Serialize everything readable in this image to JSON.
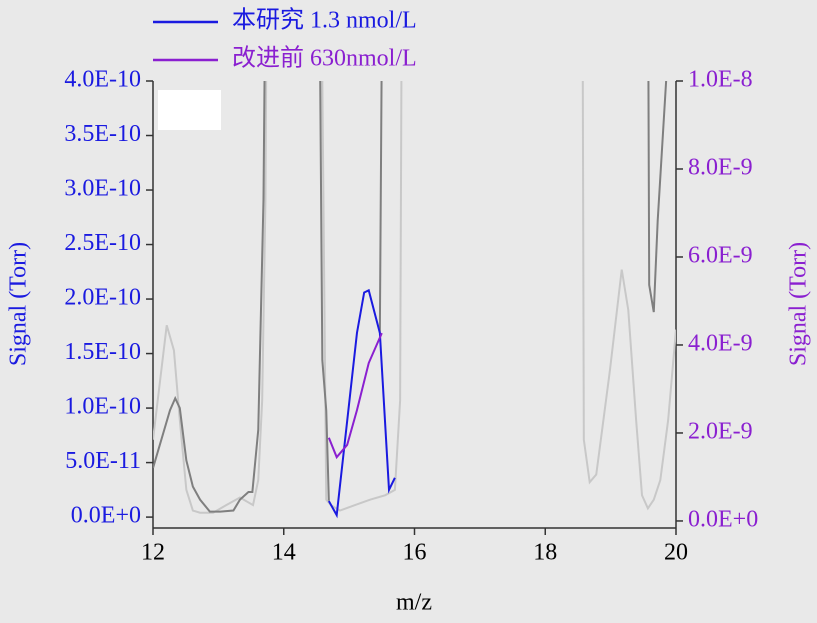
{
  "chart_data": {
    "type": "line",
    "xlabel": "m/z",
    "ylabel": "Signal (Torr)",
    "y2label": "Signal (Torr)",
    "xlim": [
      12,
      20
    ],
    "xticks": [
      12,
      14,
      16,
      18,
      20
    ],
    "ylim": [
      -1e-11,
      4e-10
    ],
    "yticks": [
      {
        "value": 0,
        "label": "0.0E+0"
      },
      {
        "value": 5e-11,
        "label": "5.0E-11"
      },
      {
        "value": 1e-10,
        "label": "1.0E-10"
      },
      {
        "value": 1.5e-10,
        "label": "1.5E-10"
      },
      {
        "value": 2e-10,
        "label": "2.0E-10"
      },
      {
        "value": 2.5e-10,
        "label": "2.5E-10"
      },
      {
        "value": 3e-10,
        "label": "3.0E-10"
      },
      {
        "value": 3.5e-10,
        "label": "3.5E-10"
      },
      {
        "value": 4e-10,
        "label": "4.0E-10"
      }
    ],
    "y2lim": [
      -1.6e-10,
      1e-08
    ],
    "y2ticks": [
      {
        "value": 0,
        "label": "0.0E+0"
      },
      {
        "value": 2e-09,
        "label": "2.0E-9"
      },
      {
        "value": 4e-09,
        "label": "4.0E-9"
      },
      {
        "value": 6e-09,
        "label": "6.0E-9"
      },
      {
        "value": 8e-09,
        "label": "8.0E-9"
      },
      {
        "value": 1e-08,
        "label": "1.0E-8"
      }
    ],
    "ycolor": "#1a1ae0",
    "y2color": "#8a1fd0",
    "series": [
      {
        "color": "#c8c8c8",
        "x": [
          12.0,
          12.11,
          12.21,
          12.32,
          12.41,
          12.51,
          12.61,
          12.72,
          12.92,
          13.12,
          13.33,
          13.53,
          13.61,
          13.67,
          13.72,
          13.76,
          14.52,
          14.59,
          14.65,
          14.72,
          14.86,
          15.09,
          15.32,
          15.55,
          15.7,
          15.78,
          15.82,
          null,
          18.56,
          18.59,
          18.68,
          18.78,
          18.87,
          18.99,
          19.17,
          19.27,
          19.39,
          19.48,
          19.57,
          19.66,
          19.76,
          19.88,
          20.0
        ],
        "values": [
          7.1e-11,
          1.26e-10,
          1.76e-10,
          1.53e-10,
          8.9e-11,
          2.5e-11,
          6e-12,
          4e-12,
          4e-12,
          1.1e-11,
          1.8e-11,
          1.1e-11,
          3.4e-11,
          1.07e-10,
          2.91e-10,
          7e-10,
          7e-10,
          4e-10,
          1.6e-11,
          1.1e-11,
          6e-12,
          1.1e-11,
          1.6e-11,
          2e-11,
          2.5e-11,
          1.07e-10,
          7e-10,
          null,
          7e-10,
          7.1e-11,
          3.2e-11,
          3.9e-11,
          8e-11,
          1.35e-10,
          2.27e-10,
          1.9e-10,
          8.9e-11,
          2e-11,
          8e-12,
          1.6e-11,
          3.4e-11,
          8.9e-11,
          1.72e-10
        ]
      },
      {
        "color": "#7f7f7f",
        "x": [
          12.0,
          12.26,
          12.34,
          12.41,
          12.51,
          12.61,
          12.72,
          12.87,
          13.03,
          13.23,
          13.33,
          13.46,
          13.52,
          13.61,
          13.69,
          13.75,
          14.52,
          14.59,
          14.65,
          14.69,
          null,
          15.47,
          15.53,
          null,
          19.56,
          19.59,
          19.66,
          19.72,
          19.85,
          19.91
        ],
        "values": [
          4.5e-11,
          9.8e-11,
          1.09e-10,
          1e-10,
          5.2e-11,
          2.8e-11,
          1.6e-11,
          5e-12,
          5e-12,
          6e-12,
          1.6e-11,
          2.3e-11,
          2.3e-11,
          8e-11,
          2.91e-10,
          7e-10,
          7e-10,
          1.44e-10,
          9.8e-11,
          1.5e-11,
          null,
          1.69e-10,
          7e-10,
          null,
          7e-10,
          2.13e-10,
          1.88e-10,
          2.72e-10,
          4.01e-10,
          7e-10
        ]
      },
      {
        "name": "本研究 1.3 nmol/L",
        "color": "#1a1ae0",
        "x": [
          14.69,
          14.81,
          15.12,
          15.23,
          15.3,
          15.47,
          15.61,
          15.7
        ],
        "values": [
          1.47e-11,
          1.8e-12,
          1.69e-10,
          2.06e-10,
          2.08e-10,
          1.69e-10,
          2.5e-11,
          3.6e-11
        ]
      },
      {
        "name": "改进前 630nmol/L",
        "color": "#8a1fd0",
        "axis": "y2",
        "x": [
          14.69,
          14.81,
          14.97,
          15.12,
          15.3,
          15.5
        ],
        "values": [
          1.89e-09,
          1.45e-09,
          1.73e-09,
          2.52e-09,
          3.59e-09,
          4.27e-09
        ]
      }
    ]
  }
}
